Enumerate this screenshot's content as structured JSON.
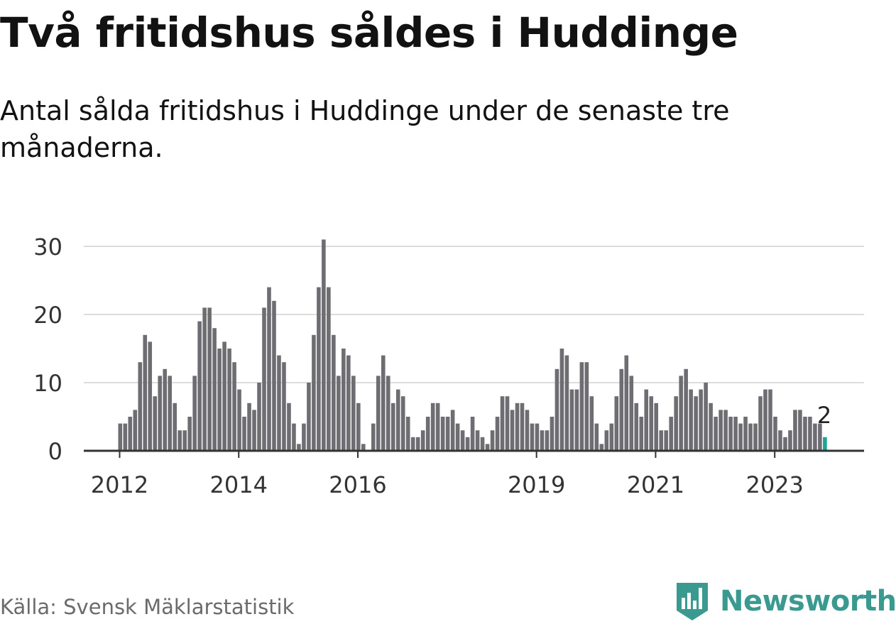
{
  "header": {
    "title": "Två fritidshus såldes i Huddinge",
    "subtitle": "Antal sålda fritidshus i Huddinge under de senaste tre månaderna."
  },
  "footer": {
    "source": "Källa: Svensk Mäklarstatistik",
    "brand": "Newsworthy"
  },
  "colors": {
    "bar": "#6e6d72",
    "highlight": "#1aa599",
    "grid": "#dddddd",
    "axis": "#333333",
    "brand": "#3a9a90"
  },
  "chart_data": {
    "type": "bar",
    "title": "Två fritidshus såldes i Huddinge",
    "xlabel": "",
    "ylabel": "",
    "ylim": [
      0,
      30
    ],
    "yticks": [
      0,
      10,
      20,
      30
    ],
    "xticks": [
      "2012",
      "2014",
      "2016",
      "2019",
      "2021",
      "2023"
    ],
    "grid": true,
    "x_start": "2012-01",
    "values": [
      4,
      4,
      5,
      6,
      13,
      17,
      16,
      8,
      11,
      12,
      11,
      7,
      3,
      3,
      5,
      11,
      19,
      21,
      21,
      18,
      15,
      16,
      15,
      13,
      9,
      5,
      7,
      6,
      10,
      21,
      24,
      22,
      14,
      13,
      7,
      4,
      1,
      4,
      10,
      17,
      24,
      31,
      24,
      17,
      11,
      15,
      14,
      11,
      7,
      1,
      0,
      4,
      11,
      14,
      11,
      7,
      9,
      8,
      5,
      2,
      2,
      3,
      5,
      7,
      7,
      5,
      5,
      6,
      4,
      3,
      2,
      5,
      3,
      2,
      1,
      3,
      5,
      8,
      8,
      6,
      7,
      7,
      6,
      4,
      4,
      3,
      3,
      5,
      12,
      15,
      14,
      9,
      9,
      13,
      13,
      8,
      4,
      1,
      3,
      4,
      8,
      12,
      14,
      11,
      7,
      5,
      9,
      8,
      7,
      3,
      3,
      5,
      8,
      11,
      12,
      9,
      8,
      9,
      10,
      7,
      5,
      6,
      6,
      5,
      5,
      4,
      5,
      4,
      4,
      8,
      9,
      9,
      5,
      3,
      2,
      3,
      6,
      6,
      5,
      5,
      4,
      4,
      2
    ],
    "highlight_index": 142,
    "annotation": "2"
  }
}
